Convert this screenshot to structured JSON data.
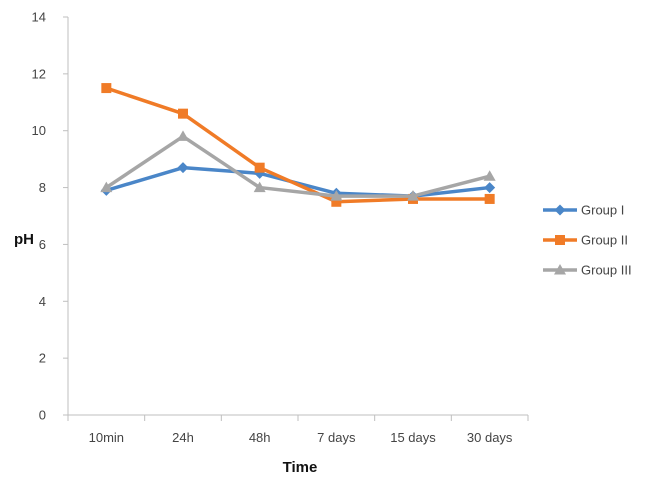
{
  "chart_data": {
    "type": "line",
    "title": "",
    "xlabel": "Time",
    "ylabel": "pH",
    "categories": [
      "10min",
      "24h",
      "48h",
      "7 days",
      "15 days",
      "30 days"
    ],
    "ylim": [
      0,
      14
    ],
    "yticks": [
      0,
      2,
      4,
      6,
      8,
      10,
      12,
      14
    ],
    "grid": false,
    "legend_position": "right",
    "series": [
      {
        "name": "Group I",
        "values": [
          7.9,
          8.7,
          8.5,
          7.8,
          7.7,
          8.0
        ],
        "color": "#4A86C8",
        "marker": "diamond"
      },
      {
        "name": "Group II",
        "values": [
          11.5,
          10.6,
          8.7,
          7.5,
          7.6,
          7.6
        ],
        "color": "#F07B27",
        "marker": "square"
      },
      {
        "name": "Group III",
        "values": [
          8.0,
          9.8,
          8.0,
          7.7,
          7.7,
          8.4
        ],
        "color": "#A6A6A6",
        "marker": "triangle"
      }
    ]
  }
}
